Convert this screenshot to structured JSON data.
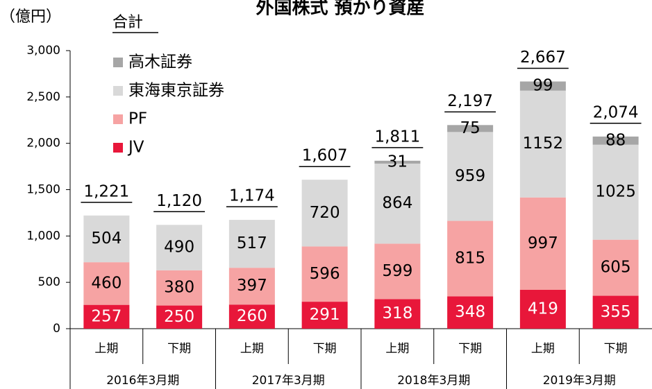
{
  "chart_data": {
    "type": "stacked_bar",
    "title": "外国株式 預かり資産",
    "unit_label": "（億円）",
    "total_label": "合計",
    "categories": [
      "上期",
      "下期",
      "上期",
      "下期",
      "上期",
      "下期",
      "上期",
      "下期"
    ],
    "groups": [
      "2016年3月期",
      "2017年3月期",
      "2018年3月期",
      "2019年3月期"
    ],
    "series": [
      {
        "name": "JV",
        "color": "#e8173a",
        "values": [
          257,
          250,
          260,
          291,
          318,
          348,
          419,
          355
        ]
      },
      {
        "name": "PF",
        "color": "#f6a3a3",
        "values": [
          460,
          380,
          397,
          596,
          599,
          815,
          997,
          605
        ]
      },
      {
        "name": "東海東京証券",
        "color": "#d9d9d9",
        "values": [
          504,
          490,
          517,
          720,
          864,
          959,
          1152,
          1025
        ]
      },
      {
        "name": "高木証券",
        "color": "#a6a6a6",
        "values": [
          null,
          null,
          null,
          null,
          31,
          75,
          99,
          88
        ]
      }
    ],
    "totals": {
      "values": [
        1221,
        1120,
        1174,
        1607,
        1811,
        2197,
        2667,
        2074
      ],
      "value_labels": [
        "1,221",
        "1,120",
        "1,174",
        "1,607",
        "1,811",
        "2,197",
        "2,667",
        "2,074"
      ]
    },
    "ylim": [
      0,
      3000
    ],
    "yticks": [
      0,
      500,
      {
        "value": 1000,
        "label": "1,000"
      },
      {
        "value": 1500,
        "label": "1,500"
      },
      {
        "value": 2000,
        "label": "2,000"
      },
      {
        "value": 2500,
        "label": "2,500"
      },
      {
        "value": 3000,
        "label": "3,000"
      }
    ],
    "legend": "upper left"
  }
}
